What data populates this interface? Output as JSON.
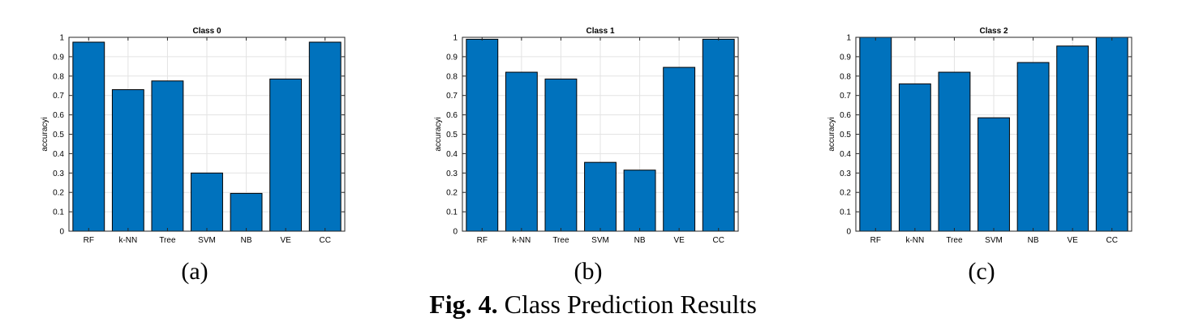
{
  "chart_data": [
    {
      "type": "bar",
      "title": "Class 0",
      "ylabel": "accuracyi",
      "categories": [
        "RF",
        "k-NN",
        "Tree",
        "SVM",
        "NB",
        "VE",
        "CC"
      ],
      "values": [
        0.975,
        0.73,
        0.775,
        0.3,
        0.195,
        0.785,
        0.975
      ],
      "ylim": [
        0,
        1
      ],
      "yticks": [
        "0",
        "0.1",
        "0.2",
        "0.3",
        "0.4",
        "0.5",
        "0.6",
        "0.7",
        "0.8",
        "0.9",
        "1"
      ],
      "grid": true,
      "color": "#0072BD",
      "panel_label": "(a)"
    },
    {
      "type": "bar",
      "title": "Class 1",
      "ylabel": "accuracyi",
      "categories": [
        "RF",
        "k-NN",
        "Tree",
        "SVM",
        "NB",
        "VE",
        "CC"
      ],
      "values": [
        0.99,
        0.82,
        0.785,
        0.355,
        0.315,
        0.845,
        0.99
      ],
      "ylim": [
        0,
        1
      ],
      "yticks": [
        "0",
        "0.1",
        "0.2",
        "0.3",
        "0.4",
        "0.5",
        "0.6",
        "0.7",
        "0.8",
        "0.9",
        "1"
      ],
      "grid": true,
      "color": "#0072BD",
      "panel_label": "(b)"
    },
    {
      "type": "bar",
      "title": "Class 2",
      "ylabel": "accuracyi",
      "categories": [
        "RF",
        "k-NN",
        "Tree",
        "SVM",
        "NB",
        "VE",
        "CC"
      ],
      "values": [
        1.0,
        0.76,
        0.82,
        0.585,
        0.87,
        0.955,
        1.0
      ],
      "ylim": [
        0,
        1
      ],
      "yticks": [
        "0",
        "0.1",
        "0.2",
        "0.3",
        "0.4",
        "0.5",
        "0.6",
        "0.7",
        "0.8",
        "0.9",
        "1"
      ],
      "grid": true,
      "color": "#0072BD",
      "panel_label": "(c)"
    }
  ],
  "caption": {
    "fig_label": "Fig. 4.",
    "text": " Class Prediction Results"
  }
}
